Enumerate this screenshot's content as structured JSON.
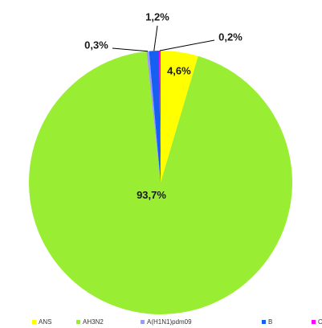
{
  "chart_data": {
    "type": "pie",
    "categories": [
      "ANS",
      "AH3N2",
      "A(H1N1)pdm09",
      "B",
      "C"
    ],
    "values": [
      4.6,
      93.7,
      0.3,
      1.2,
      0.2
    ],
    "value_labels": [
      "4,6%",
      "93,7%",
      "0,3%",
      "1,2%",
      "0,2%"
    ],
    "colors": [
      "#ffff00",
      "#99ee33",
      "#9999ff",
      "#1560f0",
      "#ff00ff"
    ],
    "legend": "bottom"
  }
}
